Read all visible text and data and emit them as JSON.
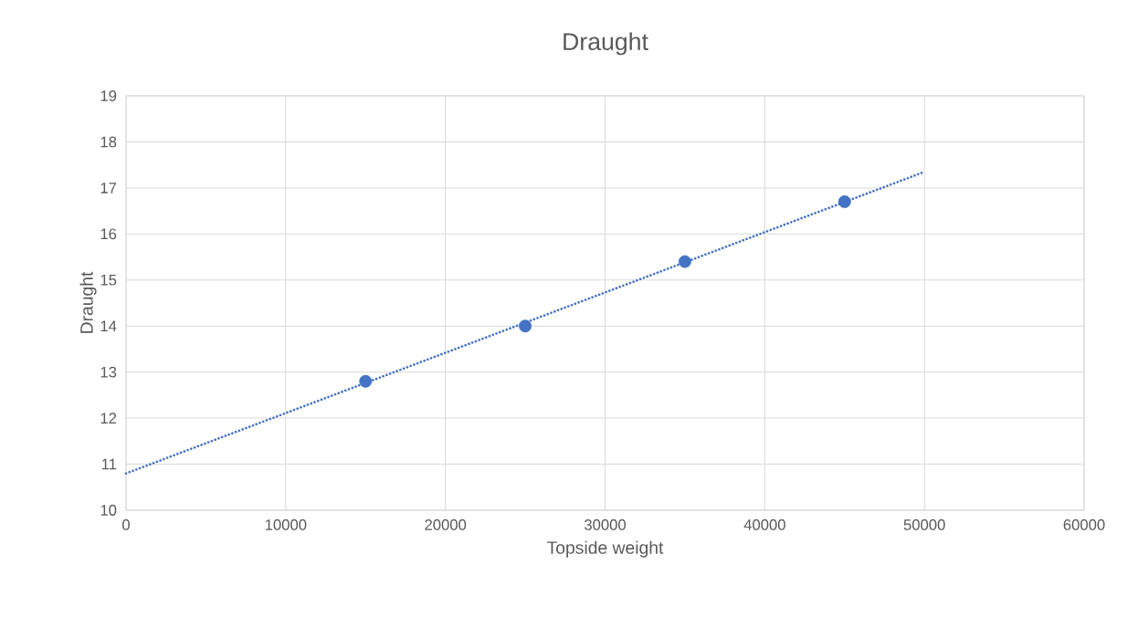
{
  "chart_data": {
    "type": "scatter",
    "title": "Draught",
    "xlabel": "Topside weight",
    "ylabel": "Draught",
    "xlim": [
      0,
      60000
    ],
    "xticks": [
      0,
      10000,
      20000,
      30000,
      40000,
      50000,
      60000
    ],
    "ylim": [
      10,
      19
    ],
    "yticks": [
      10,
      11,
      12,
      13,
      14,
      15,
      16,
      17,
      18,
      19
    ],
    "grid": true,
    "series": [
      {
        "color": "#4472c4",
        "marker": "circle",
        "x": [
          15000,
          25000,
          35000,
          45000
        ],
        "values": [
          12.8,
          14.0,
          15.4,
          16.7
        ]
      },
      {
        "type": "line",
        "color": "#4472c4",
        "marker": "none",
        "line_style": "dotted",
        "x": [
          0,
          50000
        ],
        "values": [
          10.8,
          17.35
        ]
      }
    ]
  }
}
